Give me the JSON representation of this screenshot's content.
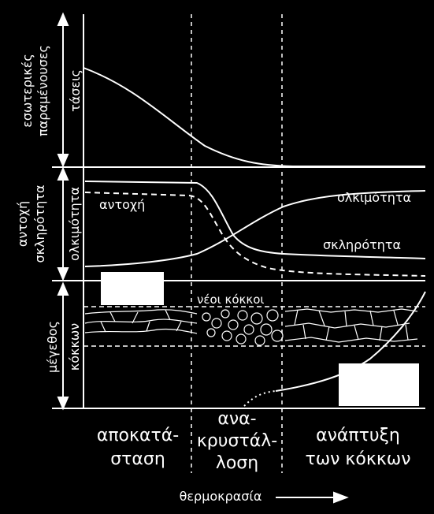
{
  "left_labels": {
    "residual_line1": "εσωτερικές",
    "residual_line2": "παραμένουσες",
    "residual_line3": "τάσεις",
    "strength": "αντοχή",
    "hardness": "σκληρότητα",
    "ductility_axis": "ολκιμότητα",
    "grain_line1": "μέγεθος",
    "grain_line2": "κόκκων"
  },
  "curve_labels": {
    "strength": "αντοχή",
    "ductility": "ολκιμότητα",
    "hardness": "σκληρότητα",
    "new_grains": "νέοι κόκκοι"
  },
  "stages": [
    {
      "lines": [
        "αποκατά-",
        "σταση"
      ]
    },
    {
      "lines": [
        "ανα-",
        "κρυστάλ-",
        "λοση"
      ]
    },
    {
      "lines": [
        "ανάπτυξη",
        "των κόκκων"
      ]
    }
  ],
  "x_axis": {
    "label": "θερμοκρασία"
  },
  "colors": {
    "background": "#000000",
    "foreground": "#ffffff"
  }
}
